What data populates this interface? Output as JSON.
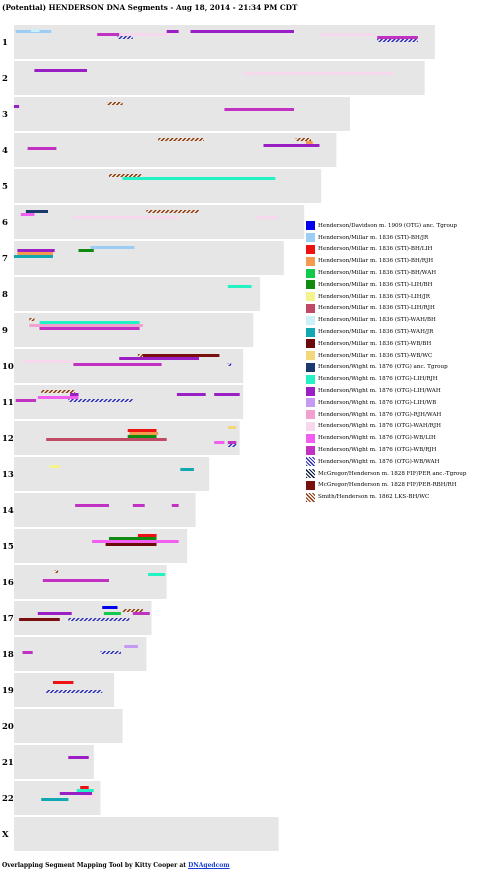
{
  "title": "(Potential) HENDERSON DNA Segments - Aug 18, 2014 - 21:34 PM CDT",
  "footer": {
    "prefix": "Overlapping Segment Mapping Tool by Kitty Cooper at ",
    "link": "DNAgedcom"
  },
  "chart_data": {
    "type": "chromosome-segment-map",
    "x_unit": "Mb",
    "legend_placement": "right",
    "chromosomes": [
      {
        "label": "1",
        "length": 248
      },
      {
        "label": "2",
        "length": 242
      },
      {
        "label": "3",
        "length": 198
      },
      {
        "label": "4",
        "length": 190
      },
      {
        "label": "5",
        "length": 181
      },
      {
        "label": "6",
        "length": 171
      },
      {
        "label": "7",
        "length": 159
      },
      {
        "label": "8",
        "length": 145
      },
      {
        "label": "9",
        "length": 141
      },
      {
        "label": "10",
        "length": 135
      },
      {
        "label": "11",
        "length": 135
      },
      {
        "label": "12",
        "length": 133
      },
      {
        "label": "13",
        "length": 115
      },
      {
        "label": "14",
        "length": 107
      },
      {
        "label": "15",
        "length": 102
      },
      {
        "label": "16",
        "length": 90
      },
      {
        "label": "17",
        "length": 81
      },
      {
        "label": "18",
        "length": 78
      },
      {
        "label": "19",
        "length": 59
      },
      {
        "label": "20",
        "length": 64
      },
      {
        "label": "21",
        "length": 47
      },
      {
        "label": "22",
        "length": 51
      },
      {
        "label": "X",
        "length": 156
      }
    ],
    "series": [
      {
        "name": "Henderson/Davidson m. 1909 (OTG) anc. Tgroup",
        "color": "#0000ee"
      },
      {
        "name": "Henderson/Millar m. 1836 (STI)-BH/JR",
        "color": "#9ccdf5"
      },
      {
        "name": "Henderson/Millar m. 1836 (STI)-BH/LIH",
        "color": "#ee1111"
      },
      {
        "name": "Henderson/Millar m. 1836 (STI)-BH/RJH",
        "color": "#f49a4e"
      },
      {
        "name": "Henderson/Millar m. 1836 (STI)-BH/WAH",
        "color": "#11c94b"
      },
      {
        "name": "Henderson/Millar m. 1836 (STI)-LIH/BH",
        "color": "#118a11"
      },
      {
        "name": "Henderson/Millar m. 1836 (STI)-LIH/JR",
        "color": "#f4f48c"
      },
      {
        "name": "Henderson/Millar m. 1836 (STI)-LIH/RJH",
        "color": "#c04a65"
      },
      {
        "name": "Henderson/Millar m. 1836 (STI)-WAH/BH",
        "color": "#ccf0f8"
      },
      {
        "name": "Henderson/Millar m. 1836 (STI)-WAH/JR",
        "color": "#11a8b4"
      },
      {
        "name": "Henderson/Millar m. 1836 (STI)-WB/BH",
        "color": "#6a0a0a"
      },
      {
        "name": "Henderson/Millar m. 1836 (STI)-WB/WC",
        "color": "#f4d77a"
      },
      {
        "name": "Henderson/Wight m. 1876 (OTG) anc. Tgroup",
        "color": "#1a3a6e"
      },
      {
        "name": "Henderson/Wight m. 1876 (OTG)-LIH/RJH",
        "color": "#22f2c4"
      },
      {
        "name": "Henderson/Wight m. 1876 (OTG)-LIH/WAH",
        "color": "#9a1fc4"
      },
      {
        "name": "Henderson/Wight m. 1876 (OTG)-LIH/WB",
        "color": "#c69af2"
      },
      {
        "name": "Henderson/Wight m. 1876 (OTG)-RJH/WAH",
        "color": "#f2a0d0"
      },
      {
        "name": "Henderson/Wight m. 1876 (OTG)-WAH/RJH",
        "color": "#f8d8ec"
      },
      {
        "name": "Henderson/Wight m. 1876 (OTG)-WB/LIH",
        "color": "#f25ef2"
      },
      {
        "name": "Henderson/Wight m. 1876 (OTG)-WB/RJH",
        "color": "#c232c2"
      },
      {
        "name": "Henderson/Wight m. 1876 (OTG)-WB/WAH",
        "color": "#2e2eb0",
        "hatch": true
      },
      {
        "name": "McGregor/Henderson m. 1828 FIF/PER anc.-Tgroup",
        "color": "#0a1a3e",
        "hatch": true
      },
      {
        "name": "McGregor/Henderson m. 1828 FIF/PER-RBH/RH",
        "color": "#7a0f0f"
      },
      {
        "name": "Smith/Henderson m. 1862 LKS-BH/WC",
        "color": "#8b3a0a",
        "hatch": true
      }
    ],
    "segments": [
      {
        "chr": "1",
        "s": 1,
        "start": 1,
        "end": 22,
        "lane": 0
      },
      {
        "chr": "1",
        "s": 8,
        "start": 10,
        "end": 15,
        "lane": -1
      },
      {
        "chr": "1",
        "s": 14,
        "start": 90,
        "end": 97,
        "lane": 0
      },
      {
        "chr": "1",
        "s": 14,
        "start": 104,
        "end": 165,
        "lane": 0
      },
      {
        "chr": "1",
        "s": 19,
        "start": 49,
        "end": 69,
        "lane": 1
      },
      {
        "chr": "1",
        "s": 17,
        "start": 62,
        "end": 92,
        "lane": 1
      },
      {
        "chr": "1",
        "s": 20,
        "start": 61,
        "end": 70,
        "lane": 2
      },
      {
        "chr": "1",
        "s": 17,
        "start": 180,
        "end": 212,
        "lane": 1
      },
      {
        "chr": "1",
        "s": 19,
        "start": 214,
        "end": 238,
        "lane": 2
      },
      {
        "chr": "1",
        "s": 20,
        "start": 214,
        "end": 238,
        "lane": 3
      },
      {
        "chr": "2",
        "s": 14,
        "start": 12,
        "end": 43,
        "lane": 1
      },
      {
        "chr": "2",
        "s": 17,
        "start": 135,
        "end": 224,
        "lane": 2
      },
      {
        "chr": "3",
        "s": 23,
        "start": 55,
        "end": 64,
        "lane": 0
      },
      {
        "chr": "3",
        "s": 14,
        "start": 0,
        "end": 3,
        "lane": 1
      },
      {
        "chr": "3",
        "s": 19,
        "start": 124,
        "end": 165,
        "lane": 2
      },
      {
        "chr": "4",
        "s": 23,
        "start": 85,
        "end": 112,
        "lane": 0
      },
      {
        "chr": "4",
        "s": 23,
        "start": 166,
        "end": 175,
        "lane": 0
      },
      {
        "chr": "4",
        "s": 3,
        "start": 172,
        "end": 176,
        "lane": 1
      },
      {
        "chr": "4",
        "s": 14,
        "start": 147,
        "end": 180,
        "lane": 2
      },
      {
        "chr": "4",
        "s": 19,
        "start": 8,
        "end": 25,
        "lane": 3
      },
      {
        "chr": "5",
        "s": 23,
        "start": 56,
        "end": 75,
        "lane": 0
      },
      {
        "chr": "5",
        "s": 13,
        "start": 64,
        "end": 154,
        "lane": 1
      },
      {
        "chr": "6",
        "s": 12,
        "start": 7,
        "end": 20,
        "lane": 0
      },
      {
        "chr": "6",
        "s": 23,
        "start": 78,
        "end": 109,
        "lane": 0
      },
      {
        "chr": "6",
        "s": 18,
        "start": 4,
        "end": 12,
        "lane": 1
      },
      {
        "chr": "6",
        "s": 17,
        "start": 35,
        "end": 97,
        "lane": 2
      },
      {
        "chr": "6",
        "s": 17,
        "start": 143,
        "end": 155,
        "lane": 2
      },
      {
        "chr": "7",
        "s": 1,
        "start": 45,
        "end": 71,
        "lane": 0
      },
      {
        "chr": "7",
        "s": 14,
        "start": 2,
        "end": 24,
        "lane": 1
      },
      {
        "chr": "7",
        "s": 5,
        "start": 38,
        "end": 47,
        "lane": 1
      },
      {
        "chr": "7",
        "s": 3,
        "start": 2,
        "end": 23,
        "lane": 2
      },
      {
        "chr": "7",
        "s": 9,
        "start": 0,
        "end": 23,
        "lane": 3
      },
      {
        "chr": "8",
        "s": 13,
        "start": 126,
        "end": 140,
        "lane": 1
      },
      {
        "chr": "9",
        "s": 23,
        "start": 9,
        "end": 12,
        "lane": 0
      },
      {
        "chr": "9",
        "s": 13,
        "start": 15,
        "end": 74,
        "lane": 1
      },
      {
        "chr": "9",
        "s": 16,
        "start": 9,
        "end": 76,
        "lane": 2
      },
      {
        "chr": "9",
        "s": 19,
        "start": 15,
        "end": 74,
        "lane": 3
      },
      {
        "chr": "10",
        "s": 23,
        "start": 73,
        "end": 80,
        "lane": 0
      },
      {
        "chr": "10",
        "s": 22,
        "start": 76,
        "end": 121,
        "lane": 0
      },
      {
        "chr": "10",
        "s": 14,
        "start": 62,
        "end": 109,
        "lane": 1
      },
      {
        "chr": "10",
        "s": 17,
        "start": 6,
        "end": 35,
        "lane": 2
      },
      {
        "chr": "10",
        "s": 19,
        "start": 35,
        "end": 87,
        "lane": 3
      },
      {
        "chr": "10",
        "s": 20,
        "start": 126,
        "end": 128,
        "lane": 3
      },
      {
        "chr": "11",
        "s": 23,
        "start": 16,
        "end": 36,
        "lane": 0
      },
      {
        "chr": "11",
        "s": 14,
        "start": 33,
        "end": 38,
        "lane": 1
      },
      {
        "chr": "11",
        "s": 14,
        "start": 96,
        "end": 113,
        "lane": 1
      },
      {
        "chr": "11",
        "s": 14,
        "start": 118,
        "end": 133,
        "lane": 1
      },
      {
        "chr": "11",
        "s": 18,
        "start": 14,
        "end": 38,
        "lane": 2
      },
      {
        "chr": "11",
        "s": 19,
        "start": 1,
        "end": 13,
        "lane": 3
      },
      {
        "chr": "11",
        "s": 20,
        "start": 32,
        "end": 70,
        "lane": 3
      },
      {
        "chr": "12",
        "s": 11,
        "start": 126,
        "end": 131,
        "lane": 0
      },
      {
        "chr": "12",
        "s": 2,
        "start": 67,
        "end": 84,
        "lane": 1
      },
      {
        "chr": "12",
        "s": 3,
        "start": 68,
        "end": 85,
        "lane": 2
      },
      {
        "chr": "12",
        "s": 5,
        "start": 67,
        "end": 84,
        "lane": 3
      },
      {
        "chr": "12",
        "s": 7,
        "start": 19,
        "end": 90,
        "lane": 4
      },
      {
        "chr": "12",
        "s": 18,
        "start": 118,
        "end": 124,
        "lane": 5
      },
      {
        "chr": "12",
        "s": 19,
        "start": 126,
        "end": 131,
        "lane": 5
      },
      {
        "chr": "12",
        "s": 20,
        "start": 126,
        "end": 131,
        "lane": 6
      },
      {
        "chr": "13",
        "s": 6,
        "start": 21,
        "end": 27,
        "lane": 1
      },
      {
        "chr": "13",
        "s": 9,
        "start": 98,
        "end": 106,
        "lane": 2
      },
      {
        "chr": "14",
        "s": 19,
        "start": 36,
        "end": 56,
        "lane": 2
      },
      {
        "chr": "14",
        "s": 19,
        "start": 70,
        "end": 77,
        "lane": 2
      },
      {
        "chr": "14",
        "s": 19,
        "start": 93,
        "end": 97,
        "lane": 2
      },
      {
        "chr": "15",
        "s": 2,
        "start": 73,
        "end": 84,
        "lane": 0
      },
      {
        "chr": "15",
        "s": 5,
        "start": 56,
        "end": 84,
        "lane": 1
      },
      {
        "chr": "15",
        "s": 18,
        "start": 46,
        "end": 97,
        "lane": 2
      },
      {
        "chr": "15",
        "s": 10,
        "start": 54,
        "end": 84,
        "lane": 3
      },
      {
        "chr": "16",
        "s": 23,
        "start": 24,
        "end": 26,
        "lane": 0
      },
      {
        "chr": "16",
        "s": 13,
        "start": 79,
        "end": 89,
        "lane": 1
      },
      {
        "chr": "16",
        "s": 19,
        "start": 17,
        "end": 56,
        "lane": 3
      },
      {
        "chr": "17",
        "s": 0,
        "start": 52,
        "end": 61,
        "lane": 0
      },
      {
        "chr": "17",
        "s": 23,
        "start": 64,
        "end": 76,
        "lane": 1
      },
      {
        "chr": "17",
        "s": 14,
        "start": 14,
        "end": 34,
        "lane": 2
      },
      {
        "chr": "17",
        "s": 4,
        "start": 53,
        "end": 63,
        "lane": 2
      },
      {
        "chr": "17",
        "s": 19,
        "start": 70,
        "end": 80,
        "lane": 2
      },
      {
        "chr": "17",
        "s": 22,
        "start": 3,
        "end": 27,
        "lane": 4
      },
      {
        "chr": "17",
        "s": 20,
        "start": 32,
        "end": 68,
        "lane": 4
      },
      {
        "chr": "18",
        "s": 15,
        "start": 65,
        "end": 73,
        "lane": 1
      },
      {
        "chr": "18",
        "s": 19,
        "start": 5,
        "end": 11,
        "lane": 3
      },
      {
        "chr": "18",
        "s": 20,
        "start": 51,
        "end": 63,
        "lane": 3
      },
      {
        "chr": "19",
        "s": 2,
        "start": 23,
        "end": 35,
        "lane": 1
      },
      {
        "chr": "19",
        "s": 20,
        "start": 19,
        "end": 52,
        "lane": 4
      },
      {
        "chr": "21",
        "s": 14,
        "start": 32,
        "end": 44,
        "lane": 2
      },
      {
        "chr": "22",
        "s": 2,
        "start": 39,
        "end": 44,
        "lane": 0
      },
      {
        "chr": "22",
        "s": 13,
        "start": 37,
        "end": 47,
        "lane": 1
      },
      {
        "chr": "22",
        "s": 14,
        "start": 27,
        "end": 46,
        "lane": 2
      },
      {
        "chr": "22",
        "s": 17,
        "start": 39,
        "end": 48,
        "lane": 3
      },
      {
        "chr": "22",
        "s": 9,
        "start": 16,
        "end": 32,
        "lane": 4
      }
    ]
  }
}
